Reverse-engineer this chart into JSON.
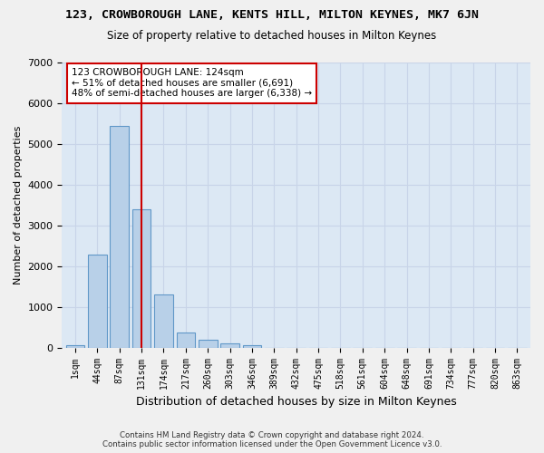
{
  "title": "123, CROWBOROUGH LANE, KENTS HILL, MILTON KEYNES, MK7 6JN",
  "subtitle": "Size of property relative to detached houses in Milton Keynes",
  "xlabel": "Distribution of detached houses by size in Milton Keynes",
  "ylabel": "Number of detached properties",
  "footer_line1": "Contains HM Land Registry data © Crown copyright and database right 2024.",
  "footer_line2": "Contains public sector information licensed under the Open Government Licence v3.0.",
  "bin_labels": [
    "1sqm",
    "44sqm",
    "87sqm",
    "131sqm",
    "174sqm",
    "217sqm",
    "260sqm",
    "303sqm",
    "346sqm",
    "389sqm",
    "432sqm",
    "475sqm",
    "518sqm",
    "561sqm",
    "604sqm",
    "648sqm",
    "691sqm",
    "734sqm",
    "777sqm",
    "820sqm",
    "863sqm"
  ],
  "bar_values": [
    50,
    2280,
    5450,
    3400,
    1300,
    380,
    200,
    110,
    50,
    0,
    0,
    0,
    0,
    0,
    0,
    0,
    0,
    0,
    0,
    0,
    0
  ],
  "bar_color": "#b8d0e8",
  "bar_edge_color": "#6098c8",
  "grid_color": "#c8d4e8",
  "background_color": "#dce8f4",
  "vline_x": 3,
  "vline_color": "#cc0000",
  "annotation_text": "123 CROWBOROUGH LANE: 124sqm\n← 51% of detached houses are smaller (6,691)\n48% of semi-detached houses are larger (6,338) →",
  "annotation_box_facecolor": "#ffffff",
  "annotation_box_edgecolor": "#cc0000",
  "ylim": [
    0,
    7000
  ],
  "yticks": [
    0,
    1000,
    2000,
    3000,
    4000,
    5000,
    6000,
    7000
  ]
}
